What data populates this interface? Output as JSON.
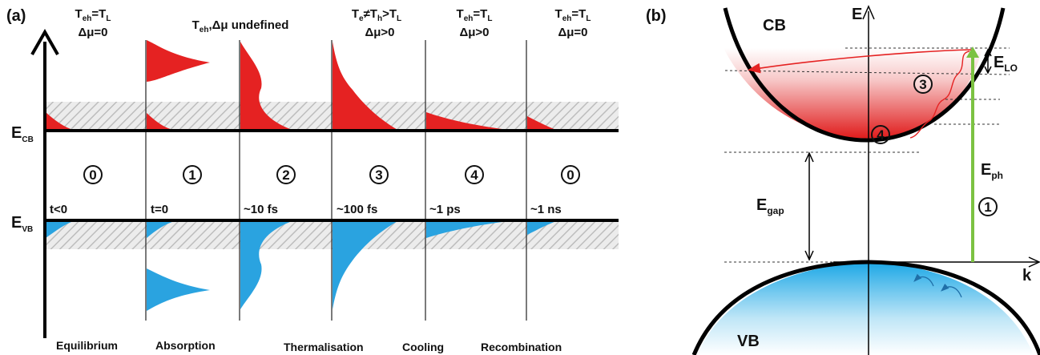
{
  "panel_a": {
    "label": "(a)",
    "energy_cb": "E",
    "energy_cb_sub": "CB",
    "energy_vb": "E",
    "energy_vb_sub": "VB",
    "columns": [
      {
        "header1": "T",
        "header1_sub": "eh",
        "header1_tail": "=T",
        "header1_tail_sub": "L",
        "header2": "Δμ=0",
        "stage": "0",
        "time": "t<0",
        "process": "Equilibrium"
      },
      {
        "header_full": "T",
        "header_full_sub": "eh",
        "header_full_tail": ",Δμ undefined",
        "stage": "1",
        "time": "t=0",
        "process": "Absorption"
      },
      {
        "stage": "2",
        "time": "~10 fs",
        "process": ""
      },
      {
        "header1": "T",
        "header1_sub": "e",
        "header1_tail": "≠T",
        "header1_tail_sub": "h",
        "header1_tail2": ">T",
        "header1_tail2_sub": "L",
        "header2": "Δμ>0",
        "stage": "3",
        "time": "~100 fs",
        "process": "Thermalisation"
      },
      {
        "header1": "T",
        "header1_sub": "eh",
        "header1_tail": "=T",
        "header1_tail_sub": "L",
        "header2": "Δμ>0",
        "stage": "4",
        "time": "~1 ps",
        "process": "Cooling"
      },
      {
        "header1": "T",
        "header1_sub": "eh",
        "header1_tail": "=T",
        "header1_tail_sub": "L",
        "header2": "Δμ=0",
        "stage": "0",
        "time": "~1 ns",
        "process": "Recombination"
      }
    ]
  },
  "panel_b": {
    "label": "(b)",
    "cb": "CB",
    "vb": "VB",
    "axis_e": "E",
    "axis_k": "k",
    "e_lo": "E",
    "e_lo_sub": "LO",
    "e_ph": "E",
    "e_ph_sub": "ph",
    "e_gap": "E",
    "e_gap_sub": "gap",
    "stage_3": "3",
    "stage_4": "4",
    "stage_1": "1"
  },
  "colors": {
    "electron": "#e52222",
    "hole": "#2aa3e0",
    "photon": "#7cc242",
    "hatch": "#c8c8c8"
  }
}
